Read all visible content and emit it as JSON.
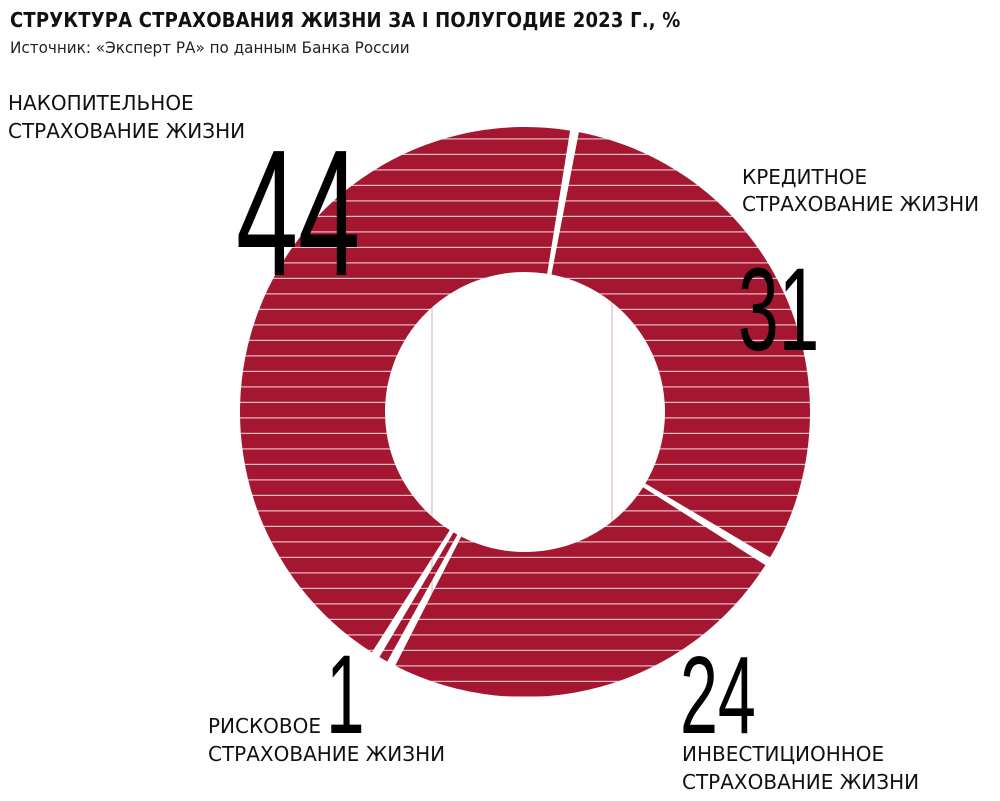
{
  "header": {
    "title": "СТРУКТУРА СТРАХОВАНИЯ ЖИЗНИ ЗА I ПОЛУГОДИЕ 2023 Г., %",
    "source": "Источник: «Эксперт РА» по данным Банка России"
  },
  "colors": {
    "slice": "#A51731",
    "stripe": "#E9BFC6",
    "background": "#FFFFFF",
    "text": "#111111"
  },
  "chart_data": {
    "type": "pie",
    "variant": "donut",
    "title": "СТРУКТУРА СТРАХОВАНИЯ ЖИЗНИ ЗА I ПОЛУГОДИЕ 2023 Г., %",
    "unit": "%",
    "slices": [
      {
        "label_line1": "КРЕДИТНОЕ",
        "label_line2": "СТРАХОВАНИЕ ЖИЗНИ",
        "value": 31
      },
      {
        "label_line1": "ИНВЕСТИЦИОННОЕ",
        "label_line2": "СТРАХОВАНИЕ ЖИЗНИ",
        "value": 24
      },
      {
        "label_line1": "РИСКОВОЕ",
        "label_line2": "СТРАХОВАНИЕ ЖИЗНИ",
        "value": 1
      },
      {
        "label_line1": "НАКОПИТЕЛЬНОЕ",
        "label_line2": "СТРАХОВАНИЕ ЖИЗНИ",
        "value": 44
      }
    ],
    "legend": "none"
  }
}
